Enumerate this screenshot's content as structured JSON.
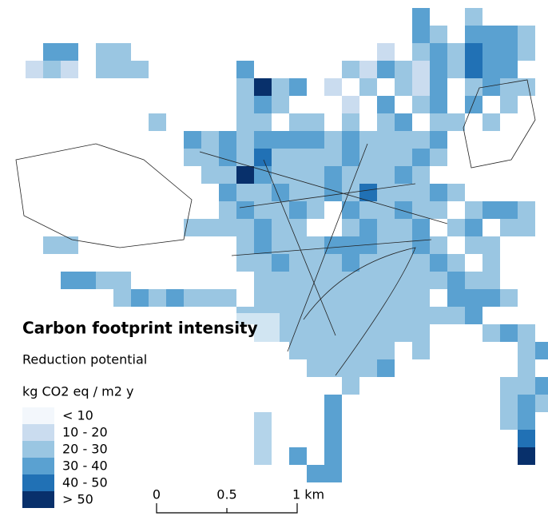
{
  "title": "Carbon footprint intensity",
  "subtitle": "Reduction potential",
  "unit": "kg CO2 eq / m2 y",
  "legend": [
    {
      "label": "< 10",
      "color": "#f3f7fc"
    },
    {
      "label": "10 - 20",
      "color": "#cadcef"
    },
    {
      "label": "20 - 30",
      "color": "#9ac6e2"
    },
    {
      "label": "30 - 40",
      "color": "#5aa1d1"
    },
    {
      "label": "40 - 50",
      "color": "#2171b5"
    },
    {
      "label": "> 50",
      "color": "#08306b"
    }
  ],
  "scale_bar": {
    "labels": [
      "0",
      "0.5",
      "1 km"
    ]
  }
}
